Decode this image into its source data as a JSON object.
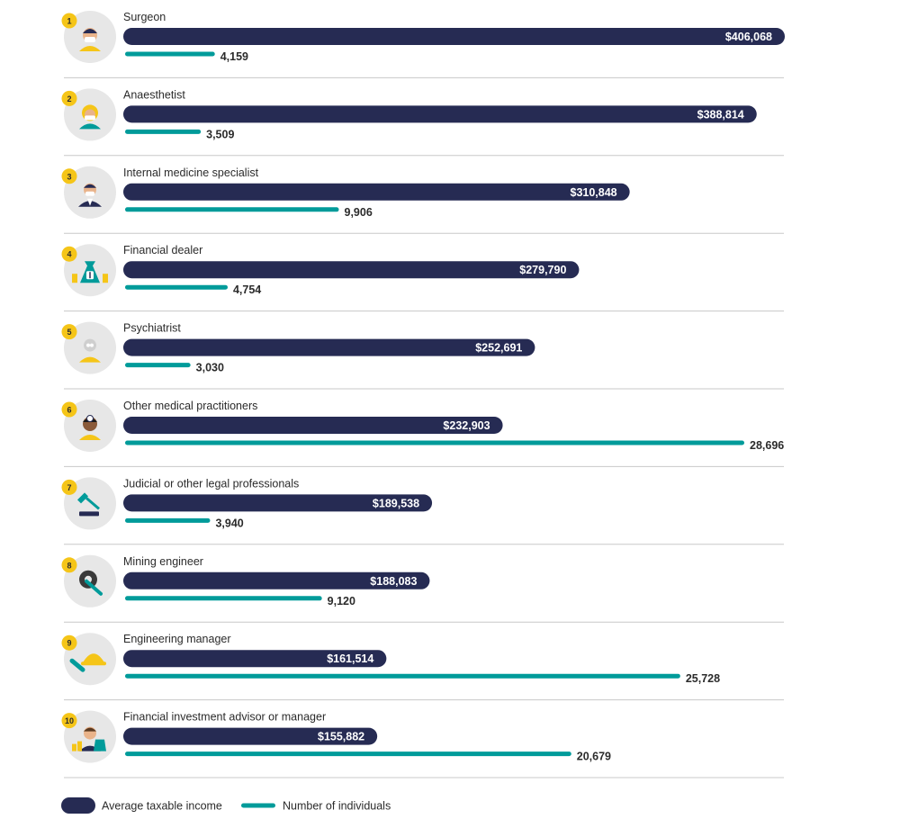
{
  "chart_data": {
    "type": "bar",
    "categories": [
      "Surgeon",
      "Anaesthetist",
      "Internal medicine specialist",
      "Financial dealer",
      "Psychiatrist",
      "Other medical practitioners",
      "Judicial or other legal professionals",
      "Mining engineer",
      "Engineering manager",
      "Financial investment advisor or manager"
    ],
    "ranks": [
      "1",
      "2",
      "3",
      "4",
      "5",
      "6",
      "7",
      "8",
      "9",
      "10"
    ],
    "icons": [
      "surgeon-icon",
      "anaesthetist-icon",
      "internal-medicine-specialist-icon",
      "money-bag-icon",
      "psychiatrist-icon",
      "medical-practitioner-icon",
      "gavel-icon",
      "gear-wrench-icon",
      "hard-hat-icon",
      "investment-advisor-icon"
    ],
    "series": [
      {
        "name": "Average taxable income",
        "color": "#262b53",
        "values": [
          406068,
          388814,
          310848,
          279790,
          252691,
          232903,
          189538,
          188083,
          161514,
          155882
        ],
        "labels": [
          "$406,068",
          "$388,814",
          "$310,848",
          "$279,790",
          "$252,691",
          "$232,903",
          "$189,538",
          "$188,083",
          "$161,514",
          "$155,882"
        ]
      },
      {
        "name": "Number of individuals",
        "color": "#009b9a",
        "values": [
          4159,
          3509,
          9906,
          4754,
          3030,
          28696,
          3940,
          9120,
          25728,
          20679
        ],
        "labels": [
          "4,159",
          "3,509",
          "9,906",
          "4,754",
          "3,030",
          "28,696",
          "3,940",
          "9,120",
          "25,728",
          "20,679"
        ]
      }
    ],
    "accent_color": "#f5c518",
    "icon_bg_color": "#e7e7e7",
    "divider_color": "#c8c8c8"
  }
}
